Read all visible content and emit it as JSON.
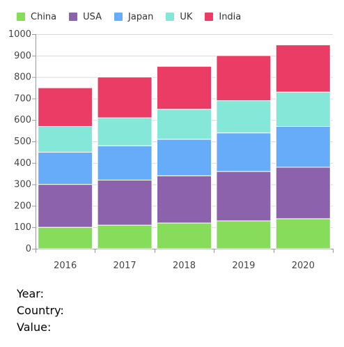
{
  "chart_data": {
    "type": "bar",
    "stacked": true,
    "categories": [
      "2016",
      "2017",
      "2018",
      "2019",
      "2020"
    ],
    "series": [
      {
        "name": "China",
        "color": "#88dc5c",
        "values": [
          100,
          110,
          120,
          130,
          140
        ]
      },
      {
        "name": "USA",
        "color": "#8c62ad",
        "values": [
          200,
          210,
          220,
          230,
          240
        ]
      },
      {
        "name": "Japan",
        "color": "#67acf8",
        "values": [
          150,
          160,
          170,
          180,
          190
        ]
      },
      {
        "name": "UK",
        "color": "#84e7d7",
        "values": [
          120,
          130,
          140,
          150,
          160
        ]
      },
      {
        "name": "India",
        "color": "#ea3c64",
        "values": [
          180,
          190,
          200,
          210,
          220
        ]
      }
    ],
    "y_ticks": [
      "0",
      "100",
      "200",
      "300",
      "400",
      "500",
      "600",
      "700",
      "800",
      "900",
      "1000"
    ],
    "ylim": [
      0,
      1000
    ],
    "grid": true,
    "legend_position": "top-left"
  },
  "info": {
    "year_label": "Year:",
    "country_label": "Country:",
    "value_label": "Value:",
    "year_value": "",
    "country_value": "",
    "value_value": ""
  }
}
